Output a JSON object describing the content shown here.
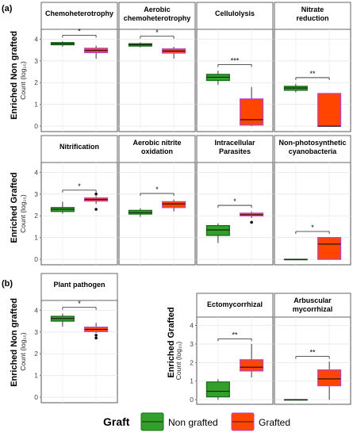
{
  "chart_data": {
    "type": "boxplot",
    "section_labels": [
      "(a)",
      "(b)"
    ],
    "row_labels": [
      "Enriched Non grafted",
      "Enriched Grafted",
      "Enriched Non grafted",
      "Enriched Grafted"
    ],
    "ylabel": "Count (log₁₀)",
    "yticks": [
      "0",
      "1",
      "2",
      "3",
      "4"
    ],
    "ylim": [
      -0.25,
      4.45
    ],
    "legend": {
      "title": "Graft",
      "items": [
        {
          "label": "Non grafted",
          "color": "#33a02c",
          "border": "#1a6b16"
        },
        {
          "label": "Grafted",
          "color": "#ff4500",
          "border": "#c040c0"
        }
      ]
    },
    "panels": [
      {
        "title": "Chemoheterotrophy",
        "significance": "*",
        "groups": [
          {
            "name": "Non grafted",
            "whisker_low": 3.65,
            "q1": 3.74,
            "median": 3.79,
            "q3": 3.84,
            "whisker_high": 3.9,
            "outliers": []
          },
          {
            "name": "Grafted",
            "whisker_low": 3.1,
            "q1": 3.38,
            "median": 3.48,
            "q3": 3.58,
            "whisker_high": 3.7,
            "outliers": []
          }
        ]
      },
      {
        "title": "Aerobic chemoheterotrophy",
        "significance": "*",
        "groups": [
          {
            "name": "Non grafted",
            "whisker_low": 3.62,
            "q1": 3.68,
            "median": 3.74,
            "q3": 3.79,
            "whisker_high": 3.85,
            "outliers": []
          },
          {
            "name": "Grafted",
            "whisker_low": 3.1,
            "q1": 3.36,
            "median": 3.45,
            "q3": 3.55,
            "whisker_high": 3.65,
            "outliers": []
          }
        ]
      },
      {
        "title": "Cellulolysis",
        "significance": "***",
        "groups": [
          {
            "name": "Non grafted",
            "whisker_low": 1.9,
            "q1": 2.1,
            "median": 2.25,
            "q3": 2.38,
            "whisker_high": 2.55,
            "outliers": []
          },
          {
            "name": "Grafted",
            "whisker_low": 0.0,
            "q1": 0.05,
            "median": 0.3,
            "q3": 1.25,
            "whisker_high": 1.8,
            "outliers": []
          }
        ]
      },
      {
        "title": "Nitrate reduction",
        "significance": "**",
        "groups": [
          {
            "name": "Non grafted",
            "whisker_low": 1.55,
            "q1": 1.65,
            "median": 1.75,
            "q3": 1.83,
            "whisker_high": 1.95,
            "outliers": []
          },
          {
            "name": "Grafted",
            "whisker_low": 0.0,
            "q1": 0.0,
            "median": 0.0,
            "q3": 1.5,
            "whisker_high": 1.5,
            "outliers": []
          }
        ]
      },
      {
        "title": "Nitrification",
        "significance": "*",
        "groups": [
          {
            "name": "Non grafted",
            "whisker_low": 2.1,
            "q1": 2.2,
            "median": 2.3,
            "q3": 2.38,
            "whisker_high": 2.65,
            "outliers": []
          },
          {
            "name": "Grafted",
            "whisker_low": 2.55,
            "q1": 2.68,
            "median": 2.75,
            "q3": 2.82,
            "whisker_high": 2.9,
            "outliers": [
              3.0,
              2.3
            ]
          }
        ]
      },
      {
        "title": "Aerobic nitrite oxidation",
        "significance": "*",
        "groups": [
          {
            "name": "Non grafted",
            "whisker_low": 1.95,
            "q1": 2.08,
            "median": 2.15,
            "q3": 2.25,
            "whisker_high": 2.35,
            "outliers": []
          },
          {
            "name": "Grafted",
            "whisker_low": 2.2,
            "q1": 2.38,
            "median": 2.55,
            "q3": 2.65,
            "whisker_high": 2.75,
            "outliers": []
          }
        ]
      },
      {
        "title": "Intracellular Parasites",
        "significance": "*",
        "groups": [
          {
            "name": "Non grafted",
            "whisker_low": 0.75,
            "q1": 1.1,
            "median": 1.35,
            "q3": 1.55,
            "whisker_high": 1.65,
            "outliers": []
          },
          {
            "name": "Grafted",
            "whisker_low": 1.9,
            "q1": 2.0,
            "median": 2.05,
            "q3": 2.12,
            "whisker_high": 2.2,
            "outliers": [
              1.7
            ]
          }
        ]
      },
      {
        "title": "Non-photosynthetic cyanobacteria",
        "significance": "*",
        "groups": [
          {
            "name": "Non grafted",
            "whisker_low": 0.0,
            "q1": 0.0,
            "median": 0.0,
            "q3": 0.0,
            "whisker_high": 0.0,
            "outliers": []
          },
          {
            "name": "Grafted",
            "whisker_low": 0.0,
            "q1": 0.0,
            "median": 0.7,
            "q3": 1.0,
            "whisker_high": 1.0,
            "outliers": []
          }
        ]
      },
      {
        "title": "Plant pathogen",
        "significance": "*",
        "groups": [
          {
            "name": "Non grafted",
            "whisker_low": 3.25,
            "q1": 3.5,
            "median": 3.62,
            "q3": 3.72,
            "whisker_high": 3.85,
            "outliers": []
          },
          {
            "name": "Grafted",
            "whisker_low": 2.95,
            "q1": 3.02,
            "median": 3.12,
            "q3": 3.22,
            "whisker_high": 3.42,
            "outliers": [
              2.72,
              2.85
            ]
          }
        ]
      },
      {
        "title": "Ectomycorrhizal",
        "significance": "**",
        "groups": [
          {
            "name": "Non grafted",
            "whisker_low": 0.0,
            "q1": 0.15,
            "median": 0.45,
            "q3": 0.95,
            "whisker_high": 1.1,
            "outliers": []
          },
          {
            "name": "Grafted",
            "whisker_low": 1.2,
            "q1": 1.55,
            "median": 1.75,
            "q3": 2.15,
            "whisker_high": 3.0,
            "outliers": []
          }
        ]
      },
      {
        "title": "Arbuscular mycorrhizal",
        "significance": "**",
        "groups": [
          {
            "name": "Non grafted",
            "whisker_low": 0.0,
            "q1": 0.0,
            "median": 0.0,
            "q3": 0.0,
            "whisker_high": 0.0,
            "outliers": []
          },
          {
            "name": "Grafted",
            "whisker_low": 0.0,
            "q1": 0.75,
            "median": 1.12,
            "q3": 1.6,
            "whisker_high": 2.05,
            "outliers": []
          }
        ]
      }
    ]
  }
}
